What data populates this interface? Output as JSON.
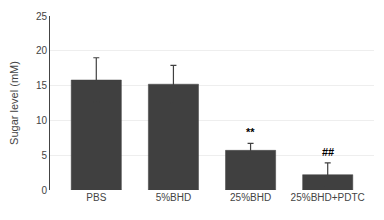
{
  "chart_data": {
    "type": "bar",
    "categories": [
      "PBS",
      "5%BHD",
      "25%BHD",
      "25%BHD+PDTC"
    ],
    "values": [
      15.8,
      15.2,
      5.7,
      2.2
    ],
    "errors": [
      3.2,
      2.7,
      1.0,
      1.7
    ],
    "color": "#404040",
    "ylabel": "Sugar level (mM)",
    "ylim": [
      0,
      25
    ],
    "yticks": [
      0,
      5,
      10,
      15,
      20,
      25
    ],
    "grid": true,
    "annotations": [
      {
        "x": "25%BHD",
        "text": "**"
      },
      {
        "x": "25%BHD+PDTC",
        "text": "##"
      }
    ]
  }
}
